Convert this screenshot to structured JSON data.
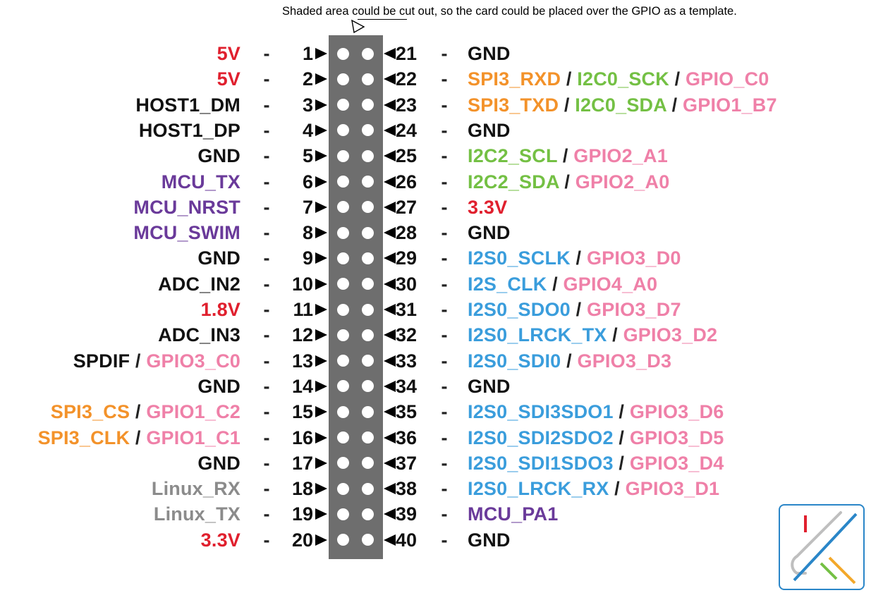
{
  "note": "Shaded area could be cut out, so the card could be placed over the GPIO as a template.",
  "colors": {
    "black": "#111111",
    "red": "#e0202e",
    "purple": "#6a3a9a",
    "orange": "#f3922a",
    "green": "#74c044",
    "pink": "#ef80a8",
    "blue": "#3a9ddc",
    "gray": "#8b8b8b",
    "header": "#6e6e6e"
  },
  "dash": "-",
  "separator": " / ",
  "left_pins": [
    {
      "num": "1",
      "segments": [
        {
          "text": "5V",
          "color": "red"
        }
      ]
    },
    {
      "num": "2",
      "segments": [
        {
          "text": "5V",
          "color": "red"
        }
      ]
    },
    {
      "num": "3",
      "segments": [
        {
          "text": "HOST1_DM",
          "color": "black"
        }
      ]
    },
    {
      "num": "4",
      "segments": [
        {
          "text": "HOST1_DP",
          "color": "black"
        }
      ]
    },
    {
      "num": "5",
      "segments": [
        {
          "text": "GND",
          "color": "black"
        }
      ]
    },
    {
      "num": "6",
      "segments": [
        {
          "text": "MCU_TX",
          "color": "purple"
        }
      ]
    },
    {
      "num": "7",
      "segments": [
        {
          "text": "MCU_NRST",
          "color": "purple"
        }
      ]
    },
    {
      "num": "8",
      "segments": [
        {
          "text": "MCU_SWIM",
          "color": "purple"
        }
      ]
    },
    {
      "num": "9",
      "segments": [
        {
          "text": "GND",
          "color": "black"
        }
      ]
    },
    {
      "num": "10",
      "segments": [
        {
          "text": "ADC_IN2",
          "color": "black"
        }
      ]
    },
    {
      "num": "11",
      "segments": [
        {
          "text": "1.8V",
          "color": "red"
        }
      ]
    },
    {
      "num": "12",
      "segments": [
        {
          "text": "ADC_IN3",
          "color": "black"
        }
      ]
    },
    {
      "num": "13",
      "segments": [
        {
          "text": "SPDIF",
          "color": "black"
        },
        {
          "text": "GPIO3_C0",
          "color": "pink"
        }
      ]
    },
    {
      "num": "14",
      "segments": [
        {
          "text": "GND",
          "color": "black"
        }
      ]
    },
    {
      "num": "15",
      "segments": [
        {
          "text": "SPI3_CS",
          "color": "orange"
        },
        {
          "text": "GPIO1_C2",
          "color": "pink"
        }
      ]
    },
    {
      "num": "16",
      "segments": [
        {
          "text": "SPI3_CLK",
          "color": "orange"
        },
        {
          "text": "GPIO1_C1",
          "color": "pink"
        }
      ]
    },
    {
      "num": "17",
      "segments": [
        {
          "text": "GND",
          "color": "black"
        }
      ]
    },
    {
      "num": "18",
      "segments": [
        {
          "text": "Linux_RX",
          "color": "gray"
        }
      ]
    },
    {
      "num": "19",
      "segments": [
        {
          "text": "Linux_TX",
          "color": "gray"
        }
      ]
    },
    {
      "num": "20",
      "segments": [
        {
          "text": "3.3V",
          "color": "red"
        }
      ]
    }
  ],
  "right_pins": [
    {
      "num": "21",
      "segments": [
        {
          "text": "GND",
          "color": "black"
        }
      ]
    },
    {
      "num": "22",
      "segments": [
        {
          "text": "SPI3_RXD",
          "color": "orange"
        },
        {
          "text": "I2C0_SCK",
          "color": "green"
        },
        {
          "text": "GPIO_C0",
          "color": "pink"
        }
      ]
    },
    {
      "num": "23",
      "segments": [
        {
          "text": "SPI3_TXD",
          "color": "orange"
        },
        {
          "text": "I2C0_SDA",
          "color": "green"
        },
        {
          "text": "GPIO1_B7",
          "color": "pink"
        }
      ]
    },
    {
      "num": "24",
      "segments": [
        {
          "text": "GND",
          "color": "black"
        }
      ]
    },
    {
      "num": "25",
      "segments": [
        {
          "text": "I2C2_SCL",
          "color": "green"
        },
        {
          "text": "GPIO2_A1",
          "color": "pink"
        }
      ]
    },
    {
      "num": "26",
      "segments": [
        {
          "text": "I2C2_SDA",
          "color": "green"
        },
        {
          "text": "GPIO2_A0",
          "color": "pink"
        }
      ]
    },
    {
      "num": "27",
      "segments": [
        {
          "text": "3.3V",
          "color": "red"
        }
      ]
    },
    {
      "num": "28",
      "segments": [
        {
          "text": "GND",
          "color": "black"
        }
      ]
    },
    {
      "num": "29",
      "segments": [
        {
          "text": "I2S0_SCLK",
          "color": "blue"
        },
        {
          "text": "GPIO3_D0",
          "color": "pink"
        }
      ]
    },
    {
      "num": "30",
      "segments": [
        {
          "text": "I2S_CLK",
          "color": "blue"
        },
        {
          "text": "GPIO4_A0",
          "color": "pink"
        }
      ]
    },
    {
      "num": "31",
      "segments": [
        {
          "text": "I2S0_SDO0",
          "color": "blue"
        },
        {
          "text": "GPIO3_D7",
          "color": "pink"
        }
      ]
    },
    {
      "num": "32",
      "segments": [
        {
          "text": "I2S0_LRCK_TX",
          "color": "blue"
        },
        {
          "text": "GPIO3_D2",
          "color": "pink"
        }
      ]
    },
    {
      "num": "33",
      "segments": [
        {
          "text": "I2S0_SDI0",
          "color": "blue"
        },
        {
          "text": "GPIO3_D3",
          "color": "pink"
        }
      ]
    },
    {
      "num": "34",
      "segments": [
        {
          "text": "GND",
          "color": "black"
        }
      ]
    },
    {
      "num": "35",
      "segments": [
        {
          "text": "I2S0_SDI3SDO1",
          "color": "blue"
        },
        {
          "text": "GPIO3_D6",
          "color": "pink"
        }
      ]
    },
    {
      "num": "36",
      "segments": [
        {
          "text": "I2S0_SDI2SDO2",
          "color": "blue"
        },
        {
          "text": "GPIO3_D5",
          "color": "pink"
        }
      ]
    },
    {
      "num": "37",
      "segments": [
        {
          "text": "I2S0_SDI1SDO3",
          "color": "blue"
        },
        {
          "text": "GPIO3_D4",
          "color": "pink"
        }
      ]
    },
    {
      "num": "38",
      "segments": [
        {
          "text": "I2S0_LRCK_RX",
          "color": "blue"
        },
        {
          "text": "GPIO3_D1",
          "color": "pink"
        }
      ]
    },
    {
      "num": "39",
      "segments": [
        {
          "text": "MCU_PA1",
          "color": "purple"
        }
      ]
    },
    {
      "num": "40",
      "segments": [
        {
          "text": "GND",
          "color": "black"
        }
      ]
    }
  ]
}
